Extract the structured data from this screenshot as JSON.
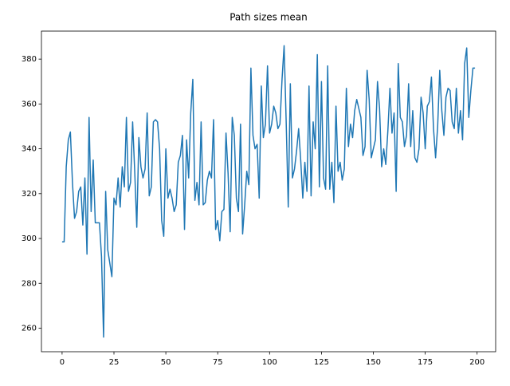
{
  "chart_data": {
    "type": "line",
    "title": "Path sizes mean",
    "x": [
      0,
      1,
      2,
      3,
      4,
      5,
      6,
      7,
      8,
      9,
      10,
      11,
      12,
      13,
      14,
      15,
      16,
      17,
      18,
      19,
      20,
      21,
      22,
      23,
      24,
      25,
      26,
      27,
      28,
      29,
      30,
      31,
      32,
      33,
      34,
      35,
      36,
      37,
      38,
      39,
      40,
      41,
      42,
      43,
      44,
      45,
      46,
      47,
      48,
      49,
      50,
      51,
      52,
      53,
      54,
      55,
      56,
      57,
      58,
      59,
      60,
      61,
      62,
      63,
      64,
      65,
      66,
      67,
      68,
      69,
      70,
      71,
      72,
      73,
      74,
      75,
      76,
      77,
      78,
      79,
      80,
      81,
      82,
      83,
      84,
      85,
      86,
      87,
      88,
      89,
      90,
      91,
      92,
      93,
      94,
      95,
      96,
      97,
      98,
      99,
      100,
      101,
      102,
      103,
      104,
      105,
      106,
      107,
      108,
      109,
      110,
      111,
      112,
      113,
      114,
      115,
      116,
      117,
      118,
      119,
      120,
      121,
      122,
      123,
      124,
      125,
      126,
      127,
      128,
      129,
      130,
      131,
      132,
      133,
      134,
      135,
      136,
      137,
      138,
      139,
      140,
      141,
      142,
      143,
      144,
      145,
      146,
      147,
      148,
      149,
      150,
      151,
      152,
      153,
      154,
      155,
      156,
      157,
      158,
      159,
      160,
      161,
      162,
      163,
      164,
      165,
      166,
      167,
      168,
      169,
      170,
      171,
      172,
      173,
      174,
      175,
      176,
      177,
      178,
      179,
      180,
      181,
      182,
      183,
      184,
      185,
      186,
      187,
      188,
      189,
      190,
      191,
      192,
      193,
      194,
      195,
      196,
      197,
      198,
      199
    ],
    "series": [
      {
        "color": "#1f77b4",
        "values": [
          298.5,
          298.5,
          332,
          344,
          347.5,
          325,
          309,
          312,
          321,
          323,
          306,
          327,
          293,
          354,
          312,
          335,
          307,
          307,
          307,
          292,
          256,
          321,
          295,
          289,
          283,
          318,
          315,
          327,
          314,
          332,
          323,
          354,
          321,
          325,
          352,
          330,
          305,
          345,
          332,
          327,
          331,
          356,
          319,
          323,
          352,
          353,
          352,
          340,
          308,
          301,
          340,
          318,
          322,
          318,
          312,
          315,
          334,
          337,
          346,
          304,
          344,
          327,
          356,
          371,
          317,
          325,
          315,
          352,
          315,
          316,
          326,
          330,
          327,
          353,
          304,
          308,
          299,
          312,
          313,
          347,
          329,
          303,
          354,
          346,
          318,
          312,
          351,
          302,
          315,
          330,
          324,
          376,
          346,
          340,
          342,
          318,
          368,
          345,
          351,
          377,
          347,
          351,
          359,
          356,
          349,
          351,
          371,
          386,
          352,
          314,
          369,
          327,
          331,
          339,
          349,
          335,
          318,
          334,
          321,
          368,
          319,
          352,
          340,
          382,
          323,
          370,
          327,
          322,
          377,
          322,
          334,
          316,
          359,
          330,
          334,
          326,
          331,
          367,
          341,
          351,
          345,
          357,
          362,
          358,
          354,
          337,
          341,
          375,
          362,
          336,
          340,
          344,
          370,
          358,
          332,
          340,
          333,
          348,
          367,
          347,
          356,
          321,
          378,
          354,
          352,
          341,
          346,
          369,
          341,
          357,
          336,
          334,
          340,
          363,
          356,
          340,
          359,
          361,
          372,
          349,
          336,
          350,
          375,
          357,
          346,
          363,
          367,
          366,
          352,
          349,
          367,
          347,
          357,
          344,
          378,
          385,
          354,
          366,
          376,
          376
        ]
      }
    ],
    "xlim": [
      -9.95,
      208.95
    ],
    "xticks": [
      0,
      25,
      50,
      75,
      100,
      125,
      150,
      175,
      200
    ],
    "ylim": [
      249.5,
      392.5
    ],
    "yticks": [
      260,
      280,
      300,
      320,
      340,
      360,
      380
    ]
  }
}
